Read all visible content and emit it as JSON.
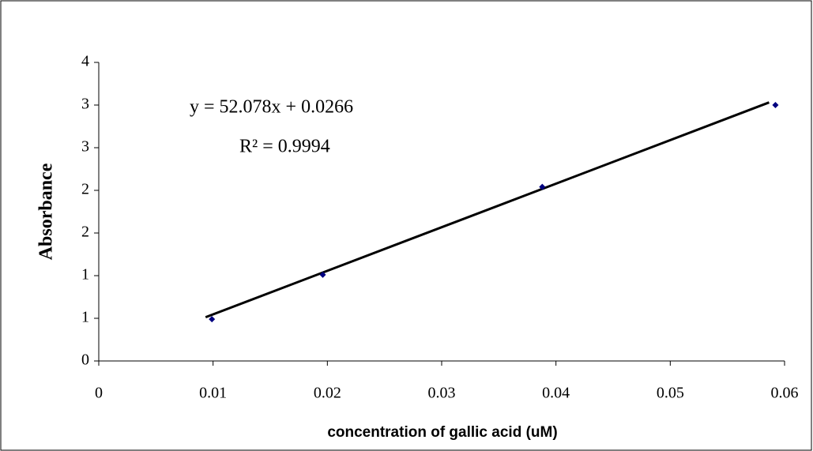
{
  "chart_data": {
    "type": "scatter",
    "x_label": "concentration of gallic acid (uM)",
    "y_label": "Absorbance",
    "annotations": [
      "y = 52.078x + 0.0266",
      "R² = 0.9994"
    ],
    "x": [
      0.0099,
      0.0196,
      0.0388,
      0.0592
    ],
    "values": [
      0.49,
      1.01,
      2.04,
      3.0
    ],
    "color": "#000080",
    "trendline": true,
    "xlim": [
      0,
      0.06
    ],
    "xticks": [
      0,
      0.01,
      0.02,
      0.03,
      0.04,
      0.05,
      0.06
    ],
    "ylim": [
      0,
      3.5
    ],
    "yticks": [
      0,
      {
        "value": 0.5,
        "label": "1"
      },
      1,
      {
        "value": 1.5,
        "label": "2"
      },
      2,
      {
        "value": 2.5,
        "label": "3"
      },
      3,
      {
        "value": 3.5,
        "label": "4"
      }
    ]
  }
}
